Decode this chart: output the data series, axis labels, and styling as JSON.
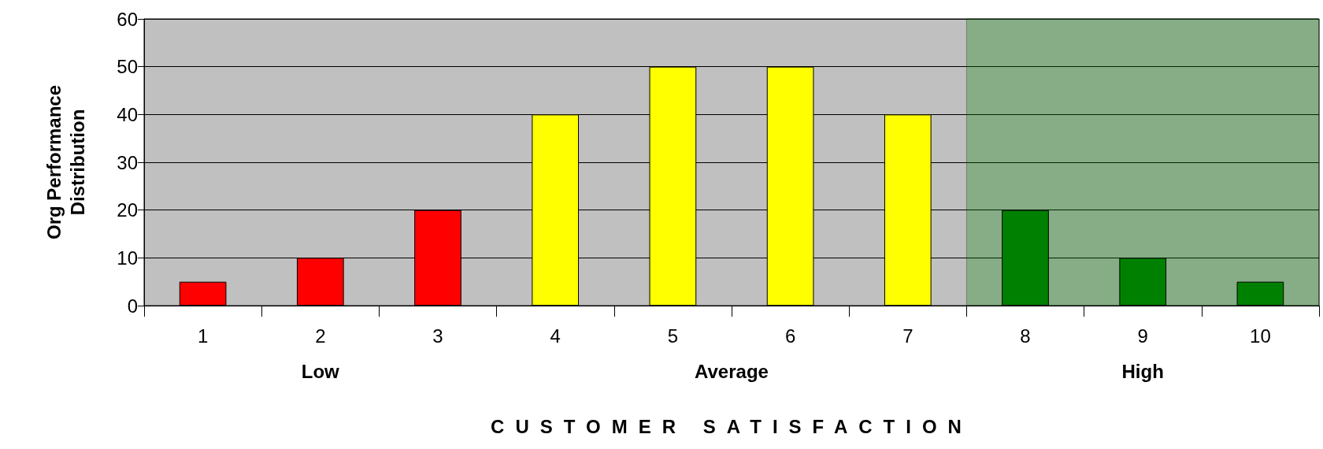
{
  "chart_data": {
    "type": "bar",
    "xlabel": "CUSTOMER SATISFACTION",
    "ylabel": "Org Performance Distribution",
    "categories": [
      "1",
      "2",
      "3",
      "4",
      "5",
      "6",
      "7",
      "8",
      "9",
      "10"
    ],
    "values": [
      5,
      10,
      20,
      40,
      50,
      50,
      40,
      20,
      10,
      5
    ],
    "colors": [
      "#ff0000",
      "#ff0000",
      "#ff0000",
      "#ffff00",
      "#ffff00",
      "#ffff00",
      "#ffff00",
      "#008000",
      "#008000",
      "#008000"
    ],
    "ylim": [
      0,
      60
    ],
    "yticks": [
      0,
      10,
      20,
      30,
      40,
      50,
      60
    ],
    "grid": "y",
    "annotations": [
      "Low",
      "Average",
      "High"
    ],
    "bands": [
      {
        "axis": "x",
        "from": "8",
        "to": "10",
        "color": "#008000"
      }
    ]
  }
}
